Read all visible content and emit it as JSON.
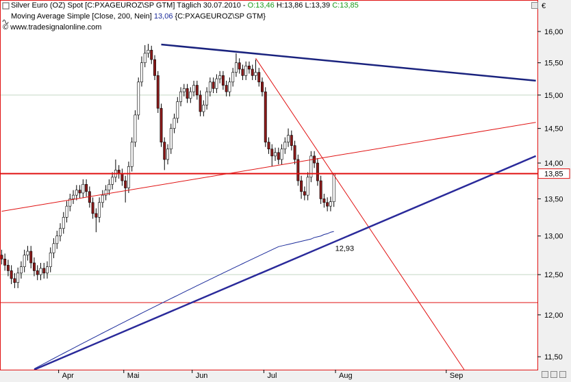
{
  "chart_data": {
    "type": "candlestick",
    "title": "Silver Euro (OZ) Spot [C:PXAGEUROZ\\SP GTM]",
    "period": "Täglich",
    "date": "30.07.2010",
    "separator": "-",
    "ohlc_labels": [
      "O:13,46",
      "H:13,86",
      "L:13,39",
      "C:13,85"
    ],
    "ohlc_label_colors": [
      "#1a9a1a",
      "#000000",
      "#000000",
      "#1a9a1a"
    ],
    "credit": "© www.tradesignalonline.com",
    "currency": "€",
    "log_scale": true,
    "ylim": [
      11.35,
      16.52
    ],
    "yticks": [
      {
        "value": 11.5,
        "label": "11,50"
      },
      {
        "value": 12,
        "label": "12,00"
      },
      {
        "value": 12.5,
        "label": "12,50"
      },
      {
        "value": 13,
        "label": "13,00"
      },
      {
        "value": 13.5,
        "label": "13,50"
      },
      {
        "value": 14,
        "label": "14,00"
      },
      {
        "value": 14.5,
        "label": "14,50"
      },
      {
        "value": 15,
        "label": "15,00"
      },
      {
        "value": 15.5,
        "label": "15,50"
      },
      {
        "value": 16,
        "label": "16,00"
      }
    ],
    "up_color": "#ffffff",
    "down_color": "#8b1a1a",
    "categories": [
      null,
      null,
      null,
      null,
      null,
      null,
      null,
      null,
      null,
      null,
      null,
      null,
      null,
      null,
      null,
      null,
      null,
      null,
      "Apr",
      null,
      null,
      null,
      null,
      null,
      null,
      null,
      null,
      null,
      null,
      null,
      null,
      null,
      null,
      null,
      null,
      null,
      null,
      null,
      "Mai",
      null,
      null,
      null,
      null,
      null,
      null,
      null,
      null,
      null,
      null,
      null,
      null,
      null,
      null,
      null,
      null,
      null,
      null,
      null,
      null,
      "Jun",
      null,
      null,
      null,
      null,
      null,
      null,
      null,
      null,
      null,
      null,
      null,
      null,
      null,
      null,
      null,
      null,
      null,
      null,
      null,
      null,
      null,
      "Jul",
      null,
      null,
      null,
      null,
      null,
      null,
      null,
      null,
      null,
      null,
      null,
      null,
      null,
      null,
      null,
      null,
      null,
      null,
      null,
      null,
      null,
      "Aug",
      null,
      null,
      null,
      null,
      null,
      null,
      null,
      null,
      null,
      null,
      null,
      null,
      null,
      null,
      null,
      null,
      null,
      null,
      null,
      null,
      null,
      null,
      null,
      null,
      null,
      null,
      null,
      null,
      null,
      null,
      null,
      null,
      null,
      "Sep",
      null,
      null,
      null,
      null,
      null,
      null,
      null,
      null,
      null,
      null,
      null,
      null,
      null,
      null,
      null,
      null,
      null,
      null,
      null,
      null,
      null,
      null,
      null,
      null,
      null,
      null,
      null
    ],
    "open": [
      12.75,
      12.7,
      12.62,
      12.55,
      12.45,
      12.4,
      12.52,
      12.6,
      12.75,
      12.8,
      12.65,
      12.55,
      12.5,
      12.58,
      12.52,
      12.6,
      12.78,
      12.9,
      13.0,
      13.1,
      13.25,
      13.4,
      13.5,
      13.55,
      13.62,
      13.58,
      13.7,
      13.6,
      13.45,
      13.3,
      13.25,
      13.45,
      13.55,
      13.62,
      13.7,
      13.8,
      13.9,
      13.85,
      13.75,
      13.65,
      13.95,
      14.3,
      14.7,
      15.2,
      15.5,
      15.65,
      15.7,
      15.55,
      15.3,
      14.8,
      14.3,
      14.05,
      14.2,
      14.5,
      14.65,
      14.9,
      15.05,
      15.1,
      14.95,
      15.05,
      15.15,
      15.0,
      14.75,
      14.85,
      15.05,
      15.2,
      15.1,
      15.25,
      15.3,
      15.15,
      15.05,
      15.2,
      15.35,
      15.5,
      15.4,
      15.3,
      15.45,
      15.4,
      15.3,
      15.35,
      15.2,
      15.05,
      14.3,
      14.2,
      14.1,
      14.15,
      14.05,
      14.2,
      14.3,
      14.4,
      14.25,
      14.05,
      13.75,
      13.6,
      13.55,
      13.8,
      14.1,
      14.0,
      13.75,
      13.5,
      13.45,
      13.4,
      13.46,
      null,
      null,
      null,
      null,
      null,
      null,
      null,
      null,
      null,
      null,
      null,
      null,
      null,
      null,
      null,
      null,
      null,
      null,
      null,
      null,
      null,
      null,
      null,
      null,
      null,
      null,
      null,
      null,
      null,
      null,
      null,
      null,
      null,
      null,
      null,
      null,
      null,
      null,
      null,
      null,
      null,
      null,
      null,
      null,
      null,
      null,
      null,
      null,
      null,
      null,
      null,
      null,
      null,
      null,
      null,
      null,
      null,
      null,
      null,
      null,
      null,
      null
    ],
    "high": [
      12.82,
      12.77,
      12.69,
      12.62,
      12.52,
      12.59,
      12.67,
      12.82,
      12.87,
      12.87,
      12.72,
      12.62,
      12.65,
      12.65,
      12.67,
      12.85,
      12.97,
      13.07,
      13.17,
      13.32,
      13.47,
      13.57,
      13.62,
      13.69,
      13.69,
      13.77,
      13.77,
      13.67,
      13.52,
      13.37,
      13.52,
      13.62,
      13.69,
      13.77,
      13.87,
      14.05,
      13.97,
      13.92,
      13.82,
      14.02,
      14.37,
      14.77,
      15.27,
      15.6,
      15.78,
      15.8,
      15.77,
      15.62,
      15.37,
      14.87,
      14.37,
      14.27,
      14.57,
      14.72,
      14.97,
      15.12,
      15.17,
      15.17,
      15.12,
      15.22,
      15.22,
      15.07,
      14.92,
      15.12,
      15.27,
      15.27,
      15.32,
      15.37,
      15.37,
      15.22,
      15.27,
      15.42,
      15.65,
      15.57,
      15.47,
      15.52,
      15.52,
      15.47,
      15.55,
      15.42,
      15.27,
      15.12,
      14.37,
      14.27,
      14.22,
      14.22,
      14.27,
      14.37,
      14.5,
      14.47,
      14.32,
      14.12,
      13.82,
      13.67,
      13.87,
      14.17,
      14.17,
      14.07,
      13.82,
      13.57,
      13.52,
      13.53,
      13.86,
      null,
      null,
      null,
      null,
      null,
      null,
      null,
      null,
      null,
      null,
      null,
      null,
      null,
      null,
      null,
      null,
      null,
      null,
      null,
      null,
      null,
      null,
      null,
      null,
      null,
      null,
      null,
      null,
      null,
      null,
      null,
      null,
      null,
      null,
      null,
      null,
      null,
      null,
      null,
      null,
      null,
      null,
      null,
      null,
      null,
      null,
      null,
      null,
      null,
      null,
      null,
      null,
      null,
      null,
      null,
      null,
      null,
      null,
      null,
      null,
      null,
      null
    ],
    "low": [
      12.63,
      12.55,
      12.48,
      12.38,
      12.33,
      12.33,
      12.45,
      12.53,
      12.68,
      12.58,
      12.48,
      12.43,
      12.43,
      12.45,
      12.45,
      12.53,
      12.71,
      12.83,
      12.93,
      13.03,
      13.18,
      13.33,
      13.43,
      13.48,
      13.51,
      13.51,
      13.53,
      13.38,
      13.23,
      13.05,
      13.18,
      13.38,
      13.48,
      13.55,
      13.63,
      13.73,
      13.78,
      13.68,
      13.45,
      13.58,
      13.88,
      14.23,
      14.63,
      15.13,
      15.43,
      15.58,
      15.48,
      15.23,
      14.73,
      14.23,
      13.9,
      13.98,
      14.13,
      14.43,
      14.58,
      14.83,
      14.98,
      14.88,
      14.88,
      14.98,
      14.93,
      14.68,
      14.68,
      14.78,
      14.98,
      15.03,
      15.03,
      15.18,
      15.08,
      14.98,
      14.98,
      15.13,
      15.28,
      15.33,
      15.23,
      15.23,
      15.33,
      15.23,
      15.23,
      15.13,
      14.98,
      14.23,
      14.13,
      13.95,
      14.03,
      13.98,
      13.98,
      14.13,
      14.23,
      14.18,
      13.98,
      13.68,
      13.5,
      13.48,
      13.48,
      13.73,
      13.93,
      13.68,
      13.43,
      13.38,
      13.33,
      13.33,
      13.39,
      null,
      null,
      null,
      null,
      null,
      null,
      null,
      null,
      null,
      null,
      null,
      null,
      null,
      null,
      null,
      null,
      null,
      null,
      null,
      null,
      null,
      null,
      null,
      null,
      null,
      null,
      null,
      null,
      null,
      null,
      null,
      null,
      null,
      null,
      null,
      null,
      null,
      null,
      null,
      null,
      null,
      null,
      null,
      null,
      null,
      null,
      null,
      null,
      null,
      null,
      null,
      null,
      null,
      null,
      null,
      null,
      null,
      null,
      null,
      null,
      null,
      null
    ],
    "close": [
      12.7,
      12.62,
      12.55,
      12.45,
      12.4,
      12.52,
      12.6,
      12.75,
      12.8,
      12.65,
      12.55,
      12.5,
      12.58,
      12.52,
      12.6,
      12.78,
      12.9,
      13.0,
      13.1,
      13.25,
      13.4,
      13.5,
      13.55,
      13.62,
      13.58,
      13.7,
      13.6,
      13.45,
      13.3,
      13.25,
      13.45,
      13.55,
      13.62,
      13.7,
      13.8,
      13.9,
      13.85,
      13.75,
      13.65,
      13.95,
      14.3,
      14.7,
      15.2,
      15.5,
      15.65,
      15.7,
      15.55,
      15.3,
      14.8,
      14.3,
      14.05,
      14.2,
      14.5,
      14.65,
      14.9,
      15.05,
      15.1,
      14.95,
      15.05,
      15.15,
      15.0,
      14.75,
      14.85,
      15.05,
      15.2,
      15.1,
      15.25,
      15.3,
      15.15,
      15.05,
      15.2,
      15.35,
      15.5,
      15.4,
      15.3,
      15.45,
      15.4,
      15.3,
      15.35,
      15.2,
      15.05,
      14.3,
      14.2,
      14.1,
      14.15,
      14.05,
      14.2,
      14.3,
      14.4,
      14.25,
      14.05,
      13.75,
      13.6,
      13.55,
      13.8,
      14.1,
      14.0,
      13.75,
      13.5,
      13.45,
      13.4,
      13.46,
      13.85,
      null,
      null,
      null,
      null,
      null,
      null,
      null,
      null,
      null,
      null,
      null,
      null,
      null,
      null,
      null,
      null,
      null,
      null,
      null,
      null,
      null,
      null,
      null,
      null,
      null,
      null,
      null,
      null,
      null,
      null,
      null,
      null,
      null,
      null,
      null,
      null,
      null,
      null,
      null,
      null,
      null,
      null,
      null,
      null,
      null,
      null,
      null,
      null,
      null,
      null,
      null,
      null,
      null,
      null,
      null,
      null,
      null,
      null,
      null,
      null,
      null,
      null
    ],
    "moving_average": {
      "name": "Moving Average Simple [Close, 200, Nein]",
      "value_label": "13,06",
      "source": "{C:PXAGEUROZ\\SP GTM}",
      "color": "#1a2a9a",
      "values": [
        null,
        null,
        null,
        null,
        null,
        null,
        null,
        null,
        null,
        null,
        11.36,
        11.38,
        11.4,
        11.42,
        11.44,
        11.46,
        11.48,
        11.5,
        11.52,
        11.54,
        11.56,
        11.58,
        11.6,
        11.62,
        11.64,
        11.66,
        11.68,
        11.7,
        11.72,
        11.74,
        11.76,
        11.78,
        11.8,
        11.82,
        11.84,
        11.86,
        11.88,
        11.9,
        11.92,
        11.94,
        11.96,
        11.98,
        12.0,
        12.02,
        12.04,
        12.06,
        12.08,
        12.1,
        12.12,
        12.14,
        12.16,
        12.18,
        12.2,
        12.22,
        12.24,
        12.26,
        12.28,
        12.3,
        12.32,
        12.34,
        12.36,
        12.38,
        12.4,
        12.42,
        12.44,
        12.46,
        12.48,
        12.5,
        12.52,
        12.54,
        12.56,
        12.58,
        12.6,
        12.62,
        12.64,
        12.66,
        12.68,
        12.7,
        12.72,
        12.74,
        12.76,
        12.78,
        12.8,
        12.82,
        12.84,
        12.86,
        12.87,
        12.88,
        12.89,
        12.9,
        12.91,
        12.92,
        12.93,
        12.94,
        12.95,
        12.96,
        12.98,
        12.99,
        13.0,
        13.02,
        13.03,
        13.05,
        13.06,
        null,
        null,
        null,
        null,
        null,
        null,
        null,
        null,
        null,
        null,
        null,
        null,
        null,
        null,
        null,
        null,
        null,
        null,
        null,
        null,
        null,
        null,
        null,
        null,
        null,
        null,
        null,
        null,
        null,
        null,
        null,
        null,
        null,
        null,
        null,
        null,
        null,
        null,
        null,
        null,
        null,
        null,
        null,
        null,
        null,
        null,
        null,
        null,
        null,
        null,
        null,
        null,
        null,
        null,
        null,
        null,
        null,
        null,
        null,
        null,
        null,
        null
      ]
    },
    "horizontal_lines": [
      {
        "value": 15.0,
        "color": "#c4d8c4",
        "weight": "thin"
      },
      {
        "value": 12.5,
        "color": "#c4d8c4",
        "weight": "thin"
      },
      {
        "value": 12.15,
        "color": "#e01010",
        "weight": "thin"
      }
    ],
    "last_price": {
      "value": 13.85,
      "label": "13,85",
      "color": "#e01010"
    },
    "trendlines": [
      {
        "x": [
          49,
          164
        ],
        "y": [
          15.79,
          15.22
        ],
        "color": "#1a237e",
        "weight": "bold"
      },
      {
        "x": [
          78,
          142
        ],
        "y": [
          15.57,
          11.35
        ],
        "color": "#e01010",
        "weight": "thin"
      },
      {
        "x": [
          0,
          164
        ],
        "y": [
          13.33,
          14.59
        ],
        "color": "#e01010",
        "weight": "thin"
      },
      {
        "x": [
          10,
          164
        ],
        "y": [
          11.35,
          14.1
        ],
        "color": "#2a2a9a",
        "weight": "bold"
      }
    ],
    "annotation": {
      "value": 12.93,
      "label": "12,93",
      "color": "#2a2a7a"
    }
  }
}
